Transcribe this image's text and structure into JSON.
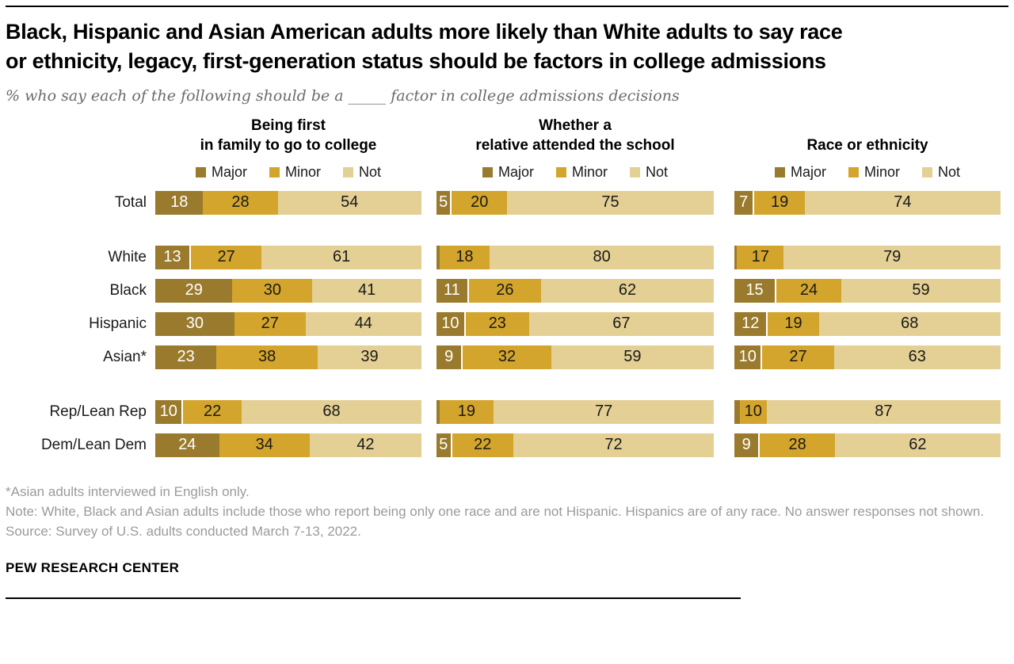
{
  "title": {
    "line1": "Black, Hispanic and Asian American adults more likely than White adults to say race",
    "line2": "or ethnicity, legacy, first-generation status should be factors in college admissions"
  },
  "subtitle": "% who say each of the following should be a _____ factor in college admissions decisions",
  "legend": {
    "major_label": "Major",
    "minor_label": "Minor",
    "not_label": "Not"
  },
  "colors": {
    "major": "#9A7B2D",
    "minor": "#D4A52C",
    "not": "#E4D094"
  },
  "chart_data": {
    "type": "bar",
    "orientation": "horizontal-stacked",
    "units": "percent",
    "min_value_for_label": 5,
    "categories": [
      "Total",
      "White",
      "Black",
      "Hispanic",
      "Asian*",
      "Rep/Lean Rep",
      "Dem/Lean Dem"
    ],
    "group_gap_before_rows": [
      1,
      5
    ],
    "panels": [
      {
        "title_lines": [
          "Being first",
          "in family to go to college"
        ],
        "series": [
          {
            "name": "Major",
            "values": [
              18,
              13,
              29,
              30,
              23,
              10,
              24
            ]
          },
          {
            "name": "Minor",
            "values": [
              28,
              27,
              30,
              27,
              38,
              22,
              34
            ]
          },
          {
            "name": "Not",
            "values": [
              54,
              61,
              41,
              44,
              39,
              68,
              42
            ]
          }
        ]
      },
      {
        "title_lines": [
          "Whether a",
          "relative attended the school"
        ],
        "series": [
          {
            "name": "Major",
            "values": [
              5,
              1,
              11,
              10,
              9,
              1,
              5
            ]
          },
          {
            "name": "Minor",
            "values": [
              20,
              18,
              26,
              23,
              32,
              19,
              22
            ]
          },
          {
            "name": "Not",
            "values": [
              75,
              80,
              62,
              67,
              59,
              77,
              72
            ]
          }
        ]
      },
      {
        "title_lines": [
          "Race or ethnicity"
        ],
        "series": [
          {
            "name": "Major",
            "values": [
              7,
              1,
              15,
              12,
              10,
              2,
              9
            ]
          },
          {
            "name": "Minor",
            "values": [
              19,
              17,
              24,
              19,
              27,
              10,
              28
            ]
          },
          {
            "name": "Not",
            "values": [
              74,
              79,
              59,
              68,
              63,
              87,
              62
            ]
          }
        ]
      }
    ]
  },
  "notes": {
    "asterisk": "*Asian adults interviewed in English only.",
    "note": "Note: White, Black and Asian adults include those who report being only one race and are not Hispanic. Hispanics are of any race. No answer responses not shown.",
    "source": "Source: Survey of U.S. adults conducted March 7-13, 2022."
  },
  "brand": "PEW RESEARCH CENTER"
}
